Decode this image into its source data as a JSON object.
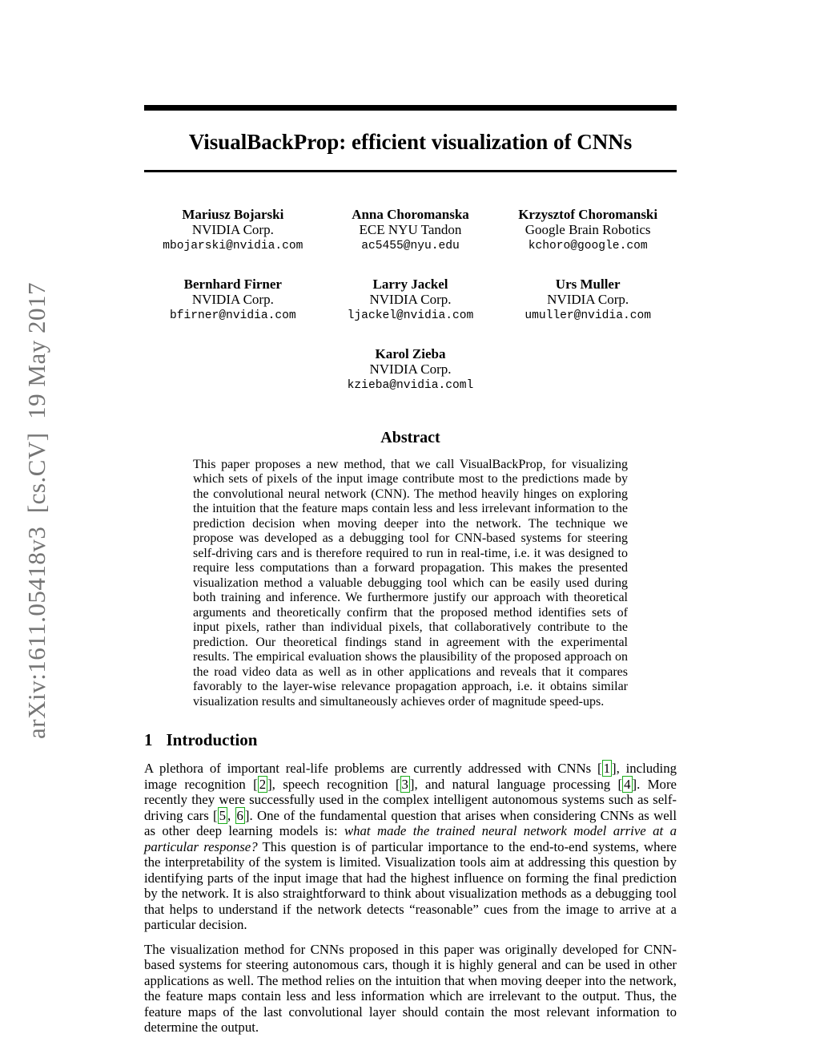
{
  "watermark": {
    "text": "arXiv:1611.05418v3  [cs.CV]  19 May 2017"
  },
  "title": "VisualBackProp: efficient visualization of CNNs",
  "authors": [
    {
      "name": "Mariusz Bojarski",
      "affiliation": "NVIDIA Corp.",
      "email": "mbojarski@nvidia.com"
    },
    {
      "name": "Anna Choromanska",
      "affiliation": "ECE NYU Tandon",
      "email": "ac5455@nyu.edu"
    },
    {
      "name": "Krzysztof Choromanski",
      "affiliation": "Google Brain Robotics",
      "email": "kchoro@google.com"
    },
    {
      "name": "Bernhard Firner",
      "affiliation": "NVIDIA Corp.",
      "email": "bfirner@nvidia.com"
    },
    {
      "name": "Larry Jackel",
      "affiliation": "NVIDIA Corp.",
      "email": "ljackel@nvidia.com"
    },
    {
      "name": "Urs Muller",
      "affiliation": "NVIDIA Corp.",
      "email": "umuller@nvidia.com"
    },
    {
      "name": "Karol Zieba",
      "affiliation": "NVIDIA Corp.",
      "email": "kzieba@nvidia.coml"
    }
  ],
  "abstract": {
    "heading": "Abstract",
    "text": "This paper proposes a new method, that we call VisualBackProp, for visualizing which sets of pixels of the input image contribute most to the predictions made by the convolutional neural network (CNN). The method heavily hinges on exploring the intuition that the feature maps contain less and less irrelevant information to the prediction decision when moving deeper into the network. The technique we propose was developed as a debugging tool for CNN-based systems for steering self-driving cars and is therefore required to run in real-time, i.e. it was designed to require less computations than a forward propagation. This makes the presented visualization method a valuable debugging tool which can be easily used during both training and inference. We furthermore justify our approach with theoretical arguments and theoretically confirm that the proposed method identifies sets of input pixels, rather than individual pixels, that collaboratively contribute to the prediction. Our theoretical findings stand in agreement with the experimental results. The empirical evaluation shows the plausibility of the proposed approach on the road video data as well as in other applications and reveals that it compares favorably to the layer-wise relevance propagation approach, i.e. it obtains similar visualization results and simultaneously achieves order of magnitude speed-ups."
  },
  "introduction": {
    "number": "1",
    "heading": "Introduction",
    "para1_segments": [
      {
        "t": "A plethora of important real-life problems are currently addressed with CNNs [",
        "s": "n"
      },
      {
        "t": "1",
        "s": "c"
      },
      {
        "t": "], including image recognition [",
        "s": "n"
      },
      {
        "t": "2",
        "s": "c"
      },
      {
        "t": "], speech recognition [",
        "s": "n"
      },
      {
        "t": "3",
        "s": "c"
      },
      {
        "t": "], and natural language processing [",
        "s": "n"
      },
      {
        "t": "4",
        "s": "c"
      },
      {
        "t": "]. More recently they were successfully used in the complex intelligent autonomous systems such as self-driving cars [",
        "s": "n"
      },
      {
        "t": "5",
        "s": "c"
      },
      {
        "t": ", ",
        "s": "n"
      },
      {
        "t": "6",
        "s": "c"
      },
      {
        "t": "]. One of the fundamental question that arises when considering CNNs as well as other deep learning models is: ",
        "s": "n"
      },
      {
        "t": "what made the trained neural network model arrive at a particular response?",
        "s": "i"
      },
      {
        "t": " This question is of particular importance to the end-to-end systems, where the interpretability of the system is limited. Visualization tools aim at addressing this question by identifying parts of the input image that had the highest influence on forming the final prediction by the network. It is also straightforward to think about visualization methods as a debugging tool that helps to understand if the network detects “reasonable” cues from the image to arrive at a particular decision.",
        "s": "n"
      }
    ],
    "para2": "The visualization method for CNNs proposed in this paper was originally developed for CNN-based systems for steering autonomous cars, though it is highly general and can be used in other applications as well. The method relies on the intuition that when moving deeper into the network, the feature maps contain less and less information which are irrelevant to the output. Thus, the feature maps of the last convolutional layer should contain the most relevant information to determine the output."
  },
  "colors": {
    "citation_green": "#1cac1c",
    "watermark_gray": "#757575"
  }
}
